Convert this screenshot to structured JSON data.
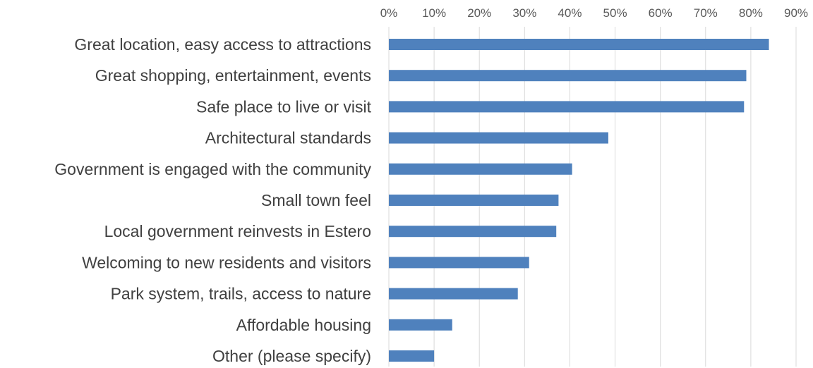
{
  "chart_data": {
    "type": "bar",
    "orientation": "horizontal",
    "categories": [
      "Great location, easy access to attractions",
      "Great shopping, entertainment, events",
      "Safe place to live or visit",
      "Architectural standards",
      "Government is engaged with the community",
      "Small town feel",
      "Local government reinvests in Estero",
      "Welcoming to new residents and visitors",
      "Park system, trails, access to nature",
      "Affordable housing",
      "Other (please specify)"
    ],
    "values": [
      84,
      79,
      78.5,
      48.5,
      40.5,
      37.5,
      37,
      31,
      28.5,
      14,
      10
    ],
    "unit": "%",
    "xlim": [
      0,
      90
    ],
    "x_ticks": [
      0,
      10,
      20,
      30,
      40,
      50,
      60,
      70,
      80,
      90
    ],
    "x_tick_labels": [
      "0%",
      "10%",
      "20%",
      "30%",
      "40%",
      "50%",
      "60%",
      "70%",
      "80%",
      "90%"
    ],
    "x_axis_position": "top",
    "grid": true,
    "bar_color": "#4f81bd",
    "title": "",
    "xlabel": "",
    "ylabel": ""
  }
}
